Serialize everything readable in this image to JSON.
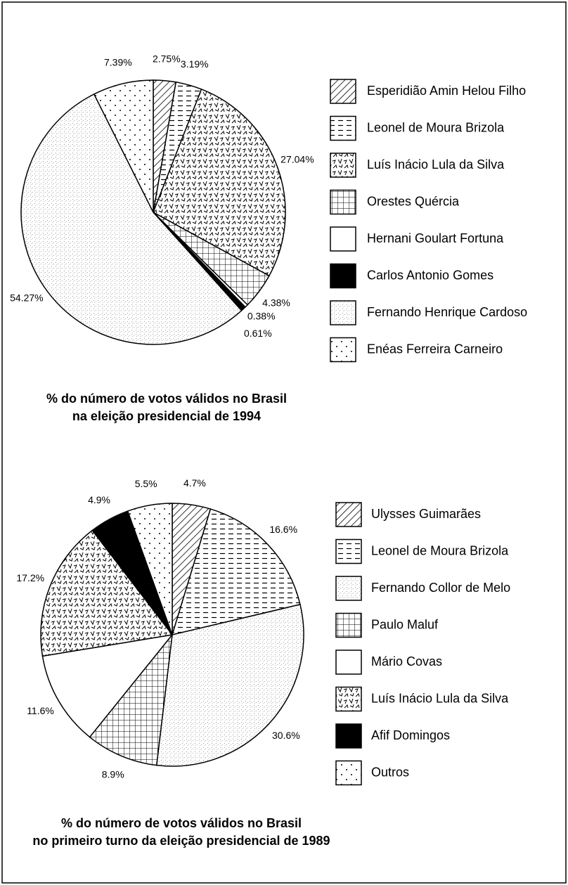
{
  "chart_data": [
    {
      "type": "pie",
      "title": [
        "% do número de votos válidos no Brasil",
        "na eleição presidencial de 1994"
      ],
      "categories": [
        "Esperidião Amin Helou Filho",
        "Leonel de Moura Brizola",
        "Luís Inácio Lula da Silva",
        "Orestes Quércia",
        "Hernani Goulart Fortuna",
        "Carlos Antonio Gomes",
        "Fernando Henrique Cardoso",
        "Enéas Ferreira Carneiro"
      ],
      "values": [
        2.75,
        3.19,
        27.04,
        4.38,
        0.38,
        0.61,
        54.27,
        7.39
      ],
      "value_labels": [
        "2.75%",
        "3.19%",
        "27.04%",
        "4.38%",
        "0.38%",
        "0.61%",
        "54.27%",
        "7.39%"
      ],
      "patterns": [
        "hatch",
        "dash",
        "zigzag",
        "grid",
        "none",
        "solid",
        "stipple",
        "dots"
      ]
    },
    {
      "type": "pie",
      "title": [
        "% do número de votos válidos no Brasil",
        "no primeiro turno da eleição presidencial de 1989"
      ],
      "categories": [
        "Ulysses Guimarães",
        "Leonel de Moura Brizola",
        "Fernando Collor de Melo",
        "Paulo Maluf",
        "Mário Covas",
        "Luís Inácio Lula da Silva",
        "Afif Domingos",
        "Outros"
      ],
      "values": [
        4.7,
        16.6,
        30.6,
        8.9,
        11.6,
        17.2,
        4.9,
        5.5
      ],
      "value_labels": [
        "4.7%",
        "16.6%",
        "30.6%",
        "8.9%",
        "11.6%",
        "17.2%",
        "4.9%",
        "5.5%"
      ],
      "patterns": [
        "hatch",
        "dash",
        "stipple",
        "grid",
        "none",
        "zigzag",
        "solid",
        "dots"
      ]
    }
  ]
}
